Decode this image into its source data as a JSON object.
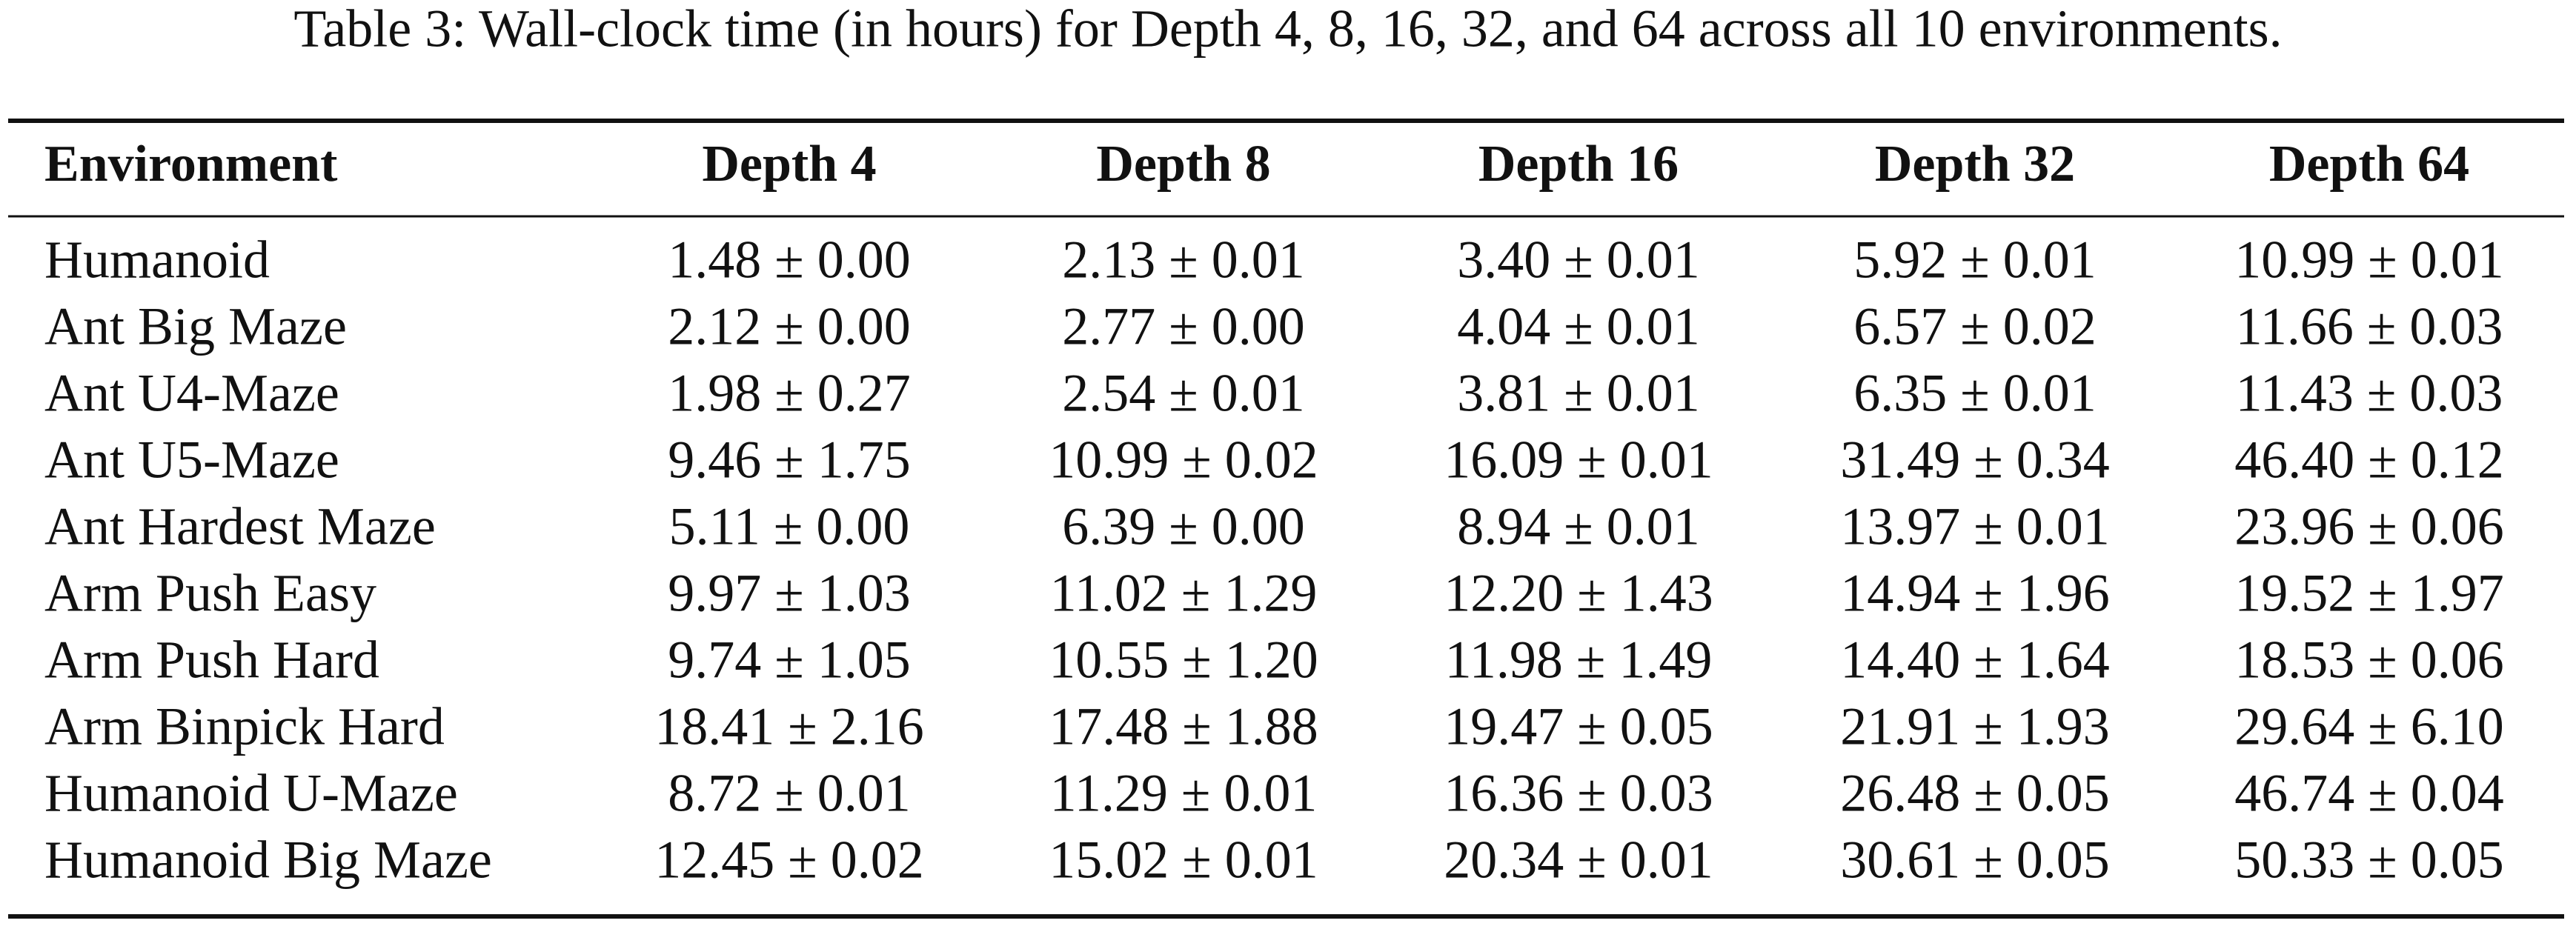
{
  "caption": "Table 3: Wall-clock time (in hours) for Depth 4, 8, 16, 32, and 64 across all 10 environments.",
  "table": {
    "header": [
      "Environment",
      "Depth 4",
      "Depth 8",
      "Depth 16",
      "Depth 32",
      "Depth 64"
    ],
    "rows": [
      [
        "Humanoid",
        "1.48 ± 0.00",
        "2.13 ± 0.01",
        "3.40 ± 0.01",
        "5.92 ± 0.01",
        "10.99 ± 0.01"
      ],
      [
        "Ant Big Maze",
        "2.12 ± 0.00",
        "2.77 ± 0.00",
        "4.04 ± 0.01",
        "6.57 ± 0.02",
        "11.66 ± 0.03"
      ],
      [
        "Ant U4-Maze",
        "1.98 ± 0.27",
        "2.54 ± 0.01",
        "3.81 ± 0.01",
        "6.35 ± 0.01",
        "11.43 ± 0.03"
      ],
      [
        "Ant U5-Maze",
        "9.46 ± 1.75",
        "10.99 ± 0.02",
        "16.09 ± 0.01",
        "31.49 ± 0.34",
        "46.40 ± 0.12"
      ],
      [
        "Ant Hardest Maze",
        "5.11 ± 0.00",
        "6.39 ± 0.00",
        "8.94 ± 0.01",
        "13.97 ± 0.01",
        "23.96 ± 0.06"
      ],
      [
        "Arm Push Easy",
        "9.97 ± 1.03",
        "11.02 ± 1.29",
        "12.20 ± 1.43",
        "14.94 ± 1.96",
        "19.52 ± 1.97"
      ],
      [
        "Arm Push Hard",
        "9.74 ± 1.05",
        "10.55 ± 1.20",
        "11.98 ± 1.49",
        "14.40 ± 1.64",
        "18.53 ± 0.06"
      ],
      [
        "Arm Binpick Hard",
        "18.41 ± 2.16",
        "17.48 ± 1.88",
        "19.47 ± 0.05",
        "21.91 ± 1.93",
        "29.64 ± 6.10"
      ],
      [
        "Humanoid U-Maze",
        "8.72 ± 0.01",
        "11.29 ± 0.01",
        "16.36 ± 0.03",
        "26.48 ± 0.05",
        "46.74 ± 0.04"
      ],
      [
        "Humanoid Big Maze",
        "12.45 ± 0.02",
        "15.02 ± 0.01",
        "20.34 ± 0.01",
        "30.61 ± 0.05",
        "50.33 ± 0.05"
      ]
    ]
  }
}
